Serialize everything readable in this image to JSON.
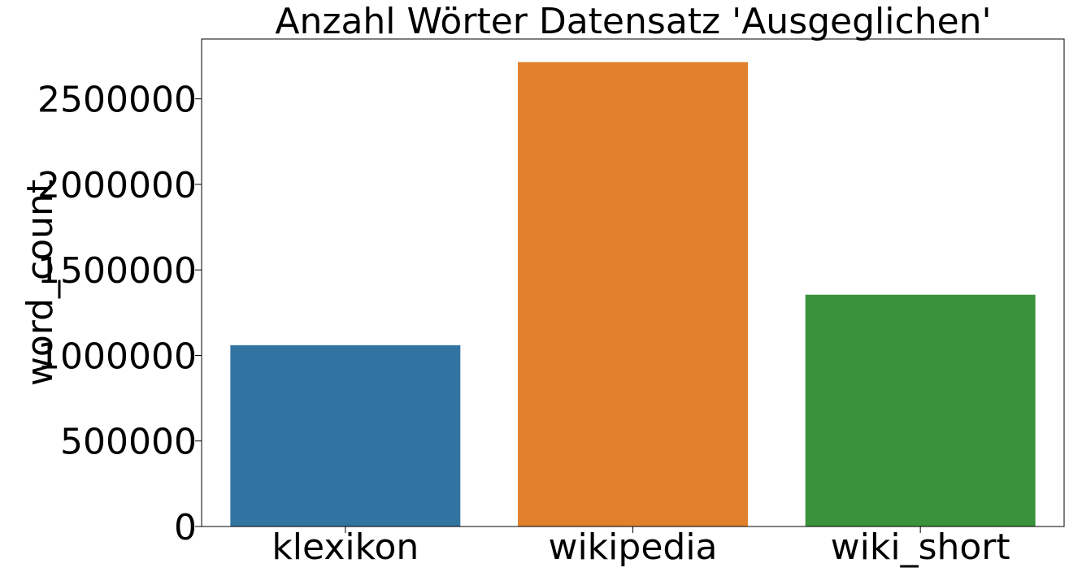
{
  "chart_data": {
    "type": "bar",
    "title": "Anzahl Wörter Datensatz 'Ausgeglichen'",
    "xlabel": "",
    "ylabel": "word_count",
    "categories": [
      "klexikon",
      "wikipedia",
      "wiki_short"
    ],
    "values": [
      1060000,
      2715000,
      1355000
    ],
    "ylim": [
      0,
      2850000
    ],
    "yticks": [
      0,
      500000,
      1000000,
      1500000,
      2000000,
      2500000
    ],
    "ytick_labels": [
      "0",
      "500000",
      "1000000",
      "1500000",
      "2000000",
      "2500000"
    ],
    "colors": [
      "#3274a1",
      "#e1812c",
      "#3a923a"
    ],
    "grid": false,
    "legend": "none"
  }
}
